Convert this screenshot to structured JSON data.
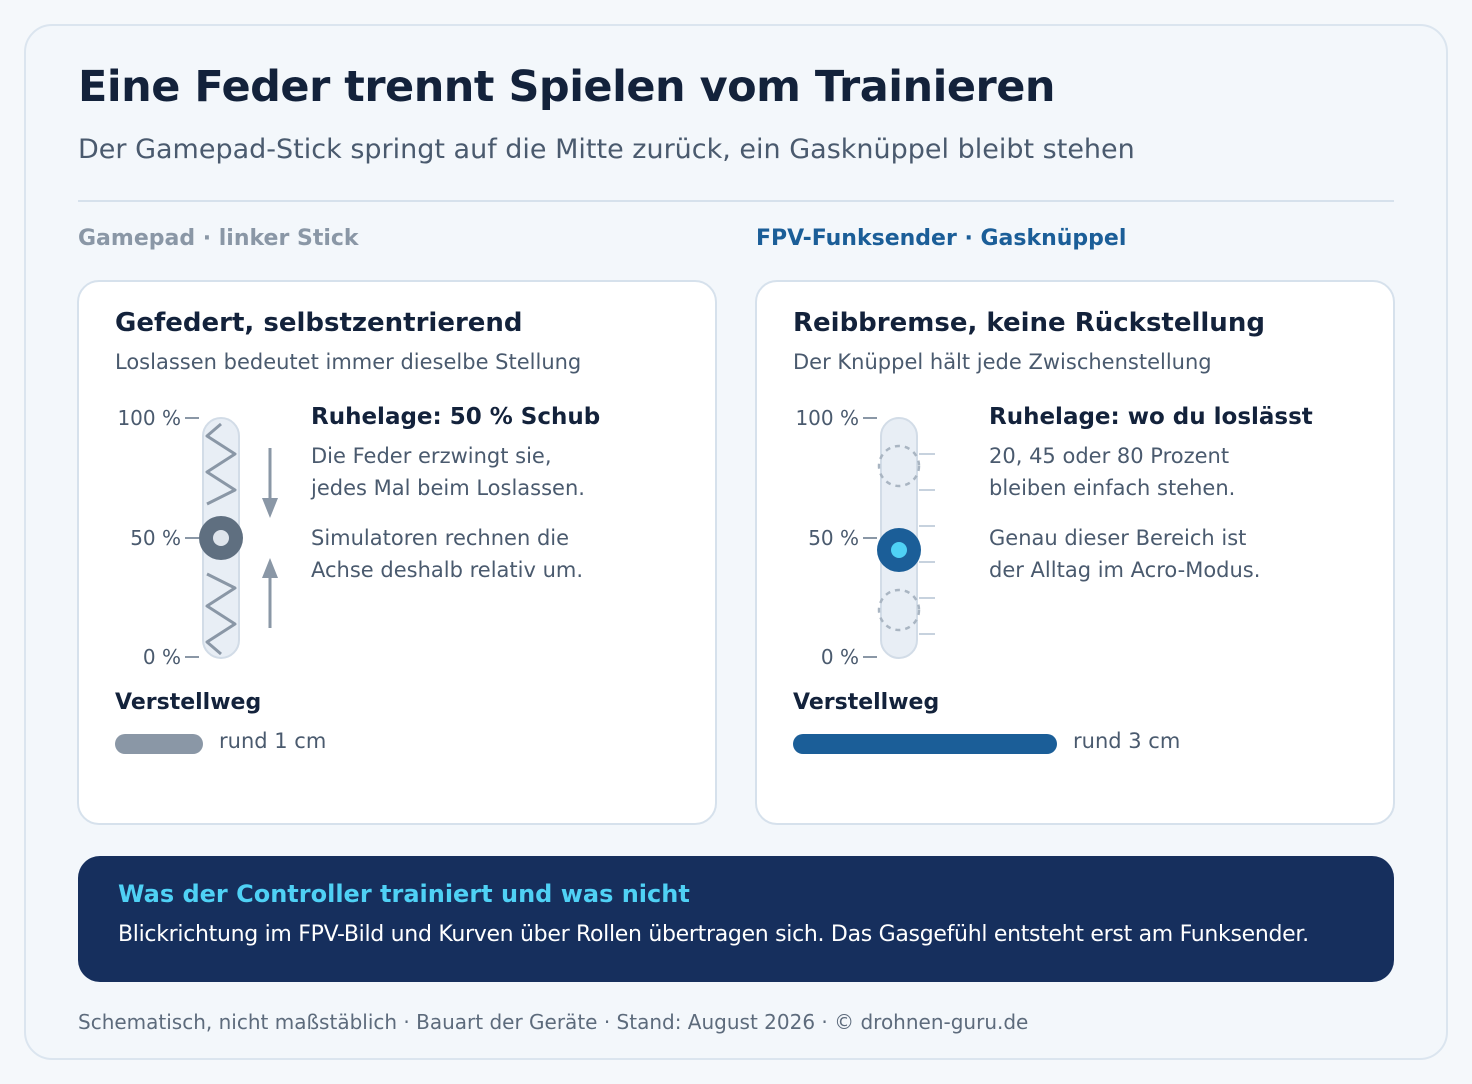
{
  "header": {
    "title": "Eine Feder trennt Spielen vom Trainieren",
    "subtitle": "Der Gamepad-Stick springt auf die Mitte zurück, ein Gasknüppel bleibt stehen"
  },
  "left": {
    "column_label": "Gamepad · linker Stick",
    "panel_title": "Gefedert, selbstzentrierend",
    "panel_subtitle": "Loslassen bedeutet immer dieselbe Stellung",
    "ticks": [
      "100 %",
      "50 %",
      "0 %"
    ],
    "info_heading": "Ruhelage: 50 % Schub",
    "info_lines_1": [
      "Die Feder erzwingt sie,",
      "jedes Mal beim Loslassen."
    ],
    "info_lines_2": [
      "Simulatoren rechnen die",
      "Achse deshalb relativ um."
    ],
    "travel_heading": "Verstellweg",
    "travel_value": "rund 1 cm",
    "travel_cm": 1,
    "rest_position": 0.5,
    "color": "#8a97a6"
  },
  "right": {
    "column_label": "FPV-Funksender · Gasknüppel",
    "panel_title": "Reibbremse, keine Rückstellung",
    "panel_subtitle": "Der Knüppel hält jede Zwischenstellung",
    "ticks": [
      "100 %",
      "50 %",
      "0 %"
    ],
    "info_heading": "Ruhelage: wo du loslässt",
    "info_lines_1": [
      "20, 45 oder 80 Prozent",
      "bleiben einfach stehen."
    ],
    "info_lines_2": [
      "Genau dieser Bereich ist",
      "der Alltag im Acro-Modus."
    ],
    "travel_heading": "Verstellweg",
    "travel_value": "rund 3 cm",
    "travel_cm": 3,
    "color": "#1b5e98",
    "accent": "#4fd1f5"
  },
  "banner": {
    "heading": "Was der Controller trainiert und was nicht",
    "text": "Blickrichtung im FPV-Bild und Kurven über Rollen übertragen sich. Das Gasgefühl entsteht erst am Funksender."
  },
  "footer": "Schematisch, nicht maßstäblich · Bauart der Geräte · Stand: August 2026 · © drohnen-guru.de"
}
